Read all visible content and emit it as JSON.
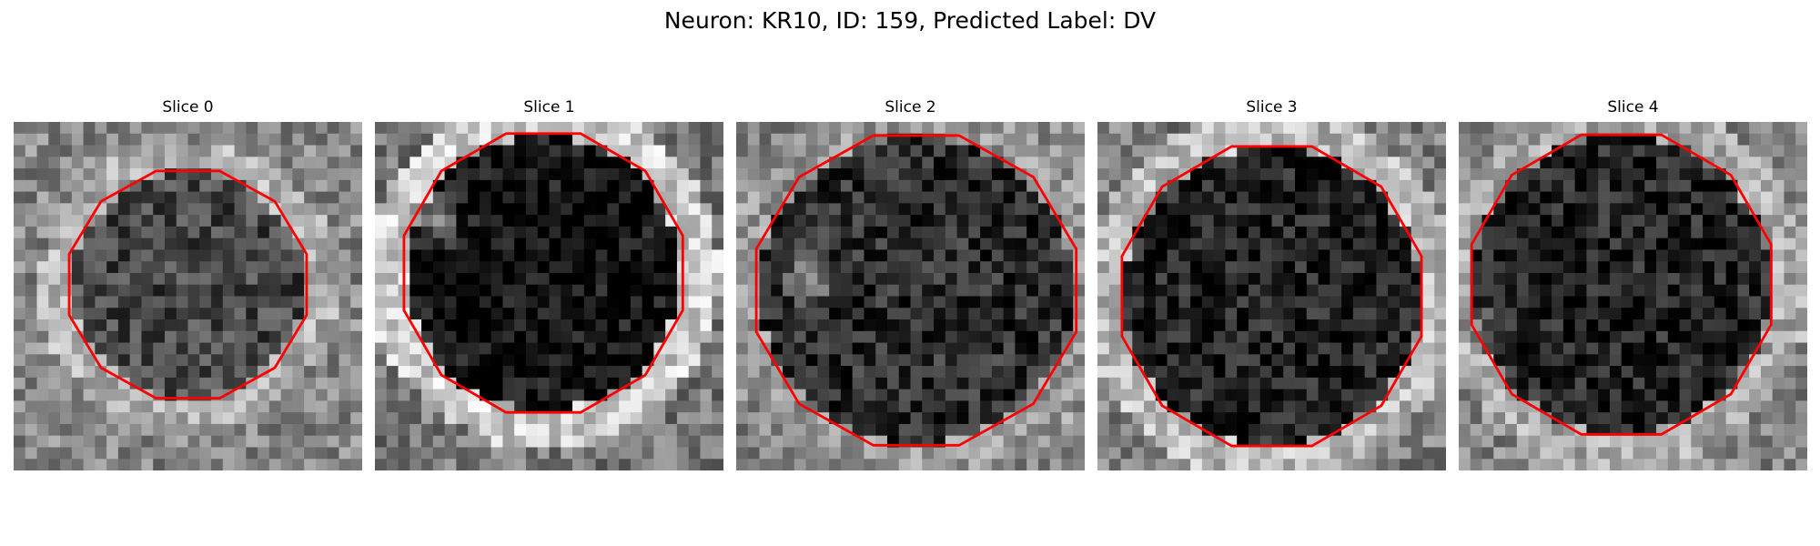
{
  "figure": {
    "title": "Neuron: KR10, ID: 159, Predicted Label: DV"
  },
  "panels": [
    {
      "title": "Slice 0"
    },
    {
      "title": "Slice 1"
    },
    {
      "title": "Slice 2"
    },
    {
      "title": "Slice 3"
    },
    {
      "title": "Slice 4"
    }
  ],
  "colors": {
    "contour": "#ff0000",
    "colormap": "gray"
  }
}
